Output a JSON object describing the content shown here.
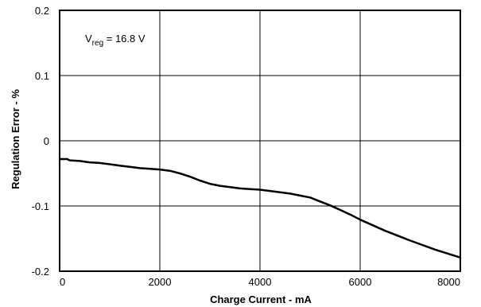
{
  "chart_data": {
    "type": "line",
    "title": "",
    "xlabel": "Charge Current - mA",
    "ylabel": "Regulation Error - %",
    "xlim": [
      0,
      8000
    ],
    "ylim": [
      -0.2,
      0.2
    ],
    "x_ticks": [
      0,
      2000,
      4000,
      6000,
      8000
    ],
    "y_ticks": [
      0.2,
      0.1,
      0,
      -0.1,
      -0.2
    ],
    "x_tick_labels": [
      "0",
      "2000",
      "4000",
      "6000",
      "8000"
    ],
    "y_tick_labels": [
      "0.2",
      "0.1",
      "0",
      "-0.1",
      "-0.2"
    ],
    "grid": true,
    "annotation": {
      "prefix": "V",
      "subscript": "reg",
      "suffix": " = 16.8 V"
    },
    "series": [
      {
        "x": [
          0,
          150,
          200,
          400,
          500,
          600,
          800,
          1000,
          1200,
          1400,
          1600,
          1800,
          2000,
          2200,
          2400,
          2600,
          2800,
          3000,
          3200,
          3400,
          3600,
          3800,
          4000,
          4200,
          4400,
          4600,
          4800,
          5000,
          5200,
          5400,
          5600,
          5800,
          6000,
          6500,
          7000,
          7500,
          8000
        ],
        "y": [
          -0.028,
          -0.028,
          -0.03,
          -0.031,
          -0.032,
          -0.033,
          -0.034,
          -0.036,
          -0.038,
          -0.04,
          -0.042,
          -0.043,
          -0.044,
          -0.046,
          -0.05,
          -0.055,
          -0.061,
          -0.066,
          -0.069,
          -0.071,
          -0.073,
          -0.074,
          -0.075,
          -0.077,
          -0.079,
          -0.081,
          -0.084,
          -0.087,
          -0.093,
          -0.099,
          -0.106,
          -0.113,
          -0.121,
          -0.138,
          -0.153,
          -0.167,
          -0.179
        ]
      }
    ]
  }
}
